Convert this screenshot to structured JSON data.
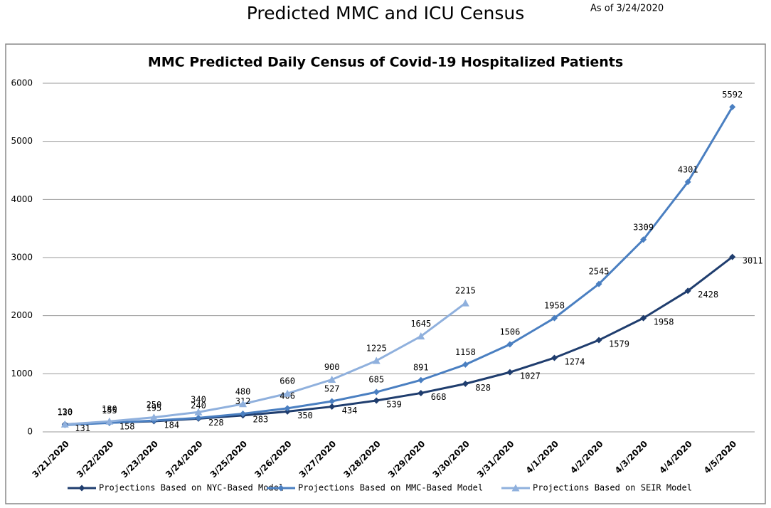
{
  "header": {
    "title": "Predicted MMC and ICU Census",
    "note": "As of 3/24/2020"
  },
  "chart_data": {
    "type": "line",
    "title": "MMC Predicted Daily Census of Covid-19 Hospitalized Patients",
    "categories": [
      "3/21/2020",
      "3/22/2020",
      "3/23/2020",
      "3/24/2020",
      "3/25/2020",
      "3/26/2020",
      "3/27/2020",
      "3/28/2020",
      "3/29/2020",
      "3/30/2020",
      "3/31/2020",
      "4/1/2020",
      "4/2/2020",
      "4/3/2020",
      "4/4/2020",
      "4/5/2020"
    ],
    "series": [
      {
        "name": "Projections Based on NYC-Based Model",
        "color": "#1f3d6e",
        "marker": "diamond",
        "label_position": "right",
        "values": [
          131,
          158,
          184,
          228,
          283,
          350,
          434,
          539,
          668,
          828,
          1027,
          1274,
          1579,
          1958,
          2428,
          3011
        ]
      },
      {
        "name": "Projections Based on MMC-Based Model",
        "color": "#4a7fc1",
        "marker": "diamond",
        "label_position": "above",
        "values": [
          120,
          155,
          195,
          240,
          312,
          406,
          527,
          685,
          891,
          1158,
          1506,
          1958,
          2545,
          3309,
          4301,
          5592
        ]
      },
      {
        "name": "Projections Based on SEIR Model",
        "color": "#8fb0dd",
        "marker": "triangle",
        "label_position": "above",
        "values": [
          130,
          180,
          250,
          340,
          480,
          660,
          900,
          1225,
          1645,
          2215,
          null,
          null,
          null,
          null,
          null,
          null
        ]
      }
    ],
    "ylim": [
      0,
      6000
    ],
    "yticks": [
      0,
      1000,
      2000,
      3000,
      4000,
      5000,
      6000
    ],
    "grid": true,
    "legend": "bottom"
  }
}
